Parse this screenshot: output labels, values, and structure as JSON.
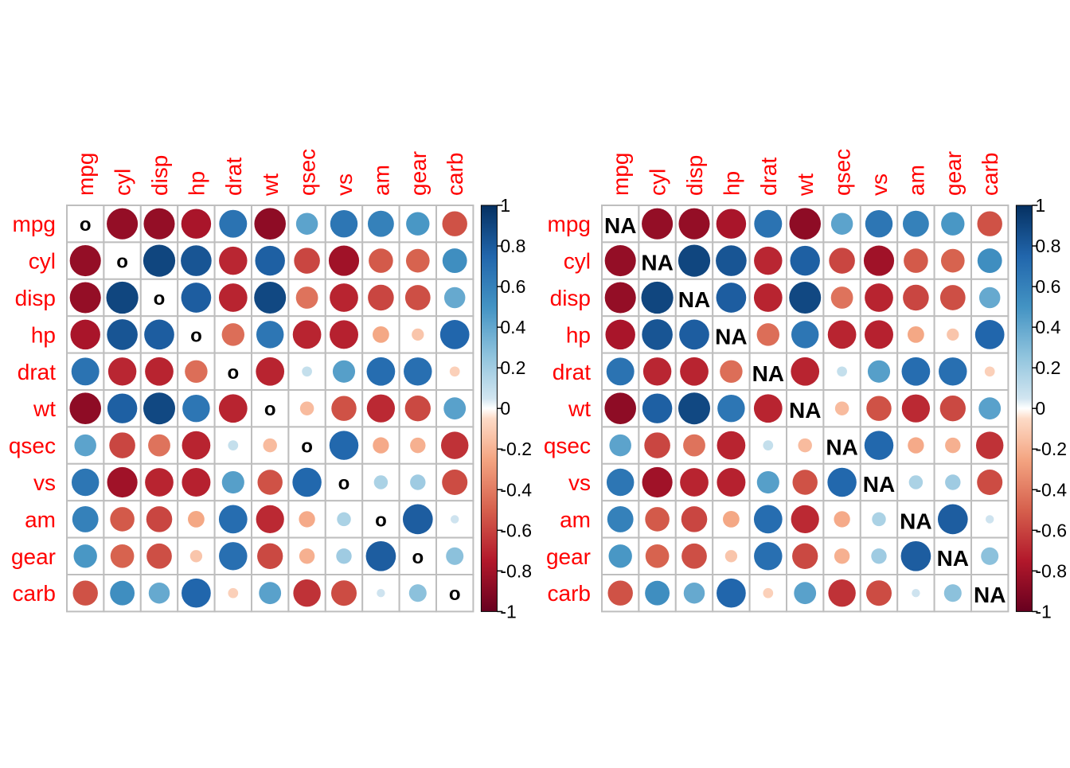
{
  "chart_data": [
    {
      "type": "heatmap",
      "variables": [
        "mpg",
        "cyl",
        "disp",
        "hp",
        "drat",
        "wt",
        "qsec",
        "vs",
        "am",
        "gear",
        "carb"
      ],
      "diagonal_label": "o",
      "matrix": [
        [
          null,
          -0.85,
          -0.85,
          -0.78,
          0.68,
          -0.87,
          0.42,
          0.66,
          0.6,
          0.48,
          -0.55
        ],
        [
          -0.85,
          null,
          0.9,
          0.83,
          -0.7,
          0.78,
          -0.59,
          -0.81,
          -0.52,
          -0.49,
          0.53
        ],
        [
          -0.85,
          0.9,
          null,
          0.79,
          -0.71,
          0.89,
          -0.43,
          -0.71,
          -0.59,
          -0.56,
          0.39
        ],
        [
          -0.78,
          0.83,
          0.79,
          null,
          -0.45,
          0.66,
          -0.71,
          -0.72,
          -0.24,
          -0.13,
          0.75
        ],
        [
          0.68,
          -0.7,
          -0.71,
          -0.45,
          null,
          -0.71,
          0.09,
          0.44,
          0.71,
          0.7,
          -0.09
        ],
        [
          -0.87,
          0.78,
          0.89,
          0.66,
          -0.71,
          null,
          -0.17,
          -0.55,
          -0.69,
          -0.58,
          0.43
        ],
        [
          0.42,
          -0.59,
          -0.43,
          -0.71,
          0.09,
          -0.17,
          null,
          0.74,
          -0.23,
          -0.21,
          -0.66
        ],
        [
          0.66,
          -0.81,
          -0.71,
          -0.72,
          0.44,
          -0.55,
          0.74,
          null,
          0.17,
          0.21,
          -0.57
        ],
        [
          0.6,
          -0.52,
          -0.59,
          -0.24,
          0.71,
          -0.69,
          -0.23,
          0.17,
          null,
          0.79,
          0.06
        ],
        [
          0.48,
          -0.49,
          -0.56,
          -0.13,
          0.7,
          -0.58,
          -0.21,
          0.21,
          0.79,
          null,
          0.27
        ],
        [
          -0.55,
          0.53,
          0.39,
          0.75,
          -0.09,
          0.43,
          -0.66,
          -0.57,
          0.06,
          0.27,
          null
        ]
      ],
      "colorbar": {
        "ticks": [
          "1",
          "0.8",
          "0.6",
          "0.4",
          "0.2",
          "0",
          "-0.2",
          "-0.4",
          "-0.6",
          "-0.8",
          "-1"
        ],
        "range": [
          -1,
          1
        ]
      },
      "colors": {
        "negative": "#67001F",
        "zero": "#FFFFFF",
        "positive": "#053061",
        "label": "#FF0000",
        "grid": "#BEBEBE"
      }
    },
    {
      "type": "heatmap",
      "variables": [
        "mpg",
        "cyl",
        "disp",
        "hp",
        "drat",
        "wt",
        "qsec",
        "vs",
        "am",
        "gear",
        "carb"
      ],
      "diagonal_label": "NA",
      "matrix": [
        [
          null,
          -0.85,
          -0.85,
          -0.78,
          0.68,
          -0.87,
          0.42,
          0.66,
          0.6,
          0.48,
          -0.55
        ],
        [
          -0.85,
          null,
          0.9,
          0.83,
          -0.7,
          0.78,
          -0.59,
          -0.81,
          -0.52,
          -0.49,
          0.53
        ],
        [
          -0.85,
          0.9,
          null,
          0.79,
          -0.71,
          0.89,
          -0.43,
          -0.71,
          -0.59,
          -0.56,
          0.39
        ],
        [
          -0.78,
          0.83,
          0.79,
          null,
          -0.45,
          0.66,
          -0.71,
          -0.72,
          -0.24,
          -0.13,
          0.75
        ],
        [
          0.68,
          -0.7,
          -0.71,
          -0.45,
          null,
          -0.71,
          0.09,
          0.44,
          0.71,
          0.7,
          -0.09
        ],
        [
          -0.87,
          0.78,
          0.89,
          0.66,
          -0.71,
          null,
          -0.17,
          -0.55,
          -0.69,
          -0.58,
          0.43
        ],
        [
          0.42,
          -0.59,
          -0.43,
          -0.71,
          0.09,
          -0.17,
          null,
          0.74,
          -0.23,
          -0.21,
          -0.66
        ],
        [
          0.66,
          -0.81,
          -0.71,
          -0.72,
          0.44,
          -0.55,
          0.74,
          null,
          0.17,
          0.21,
          -0.57
        ],
        [
          0.6,
          -0.52,
          -0.59,
          -0.24,
          0.71,
          -0.69,
          -0.23,
          0.17,
          null,
          0.79,
          0.06
        ],
        [
          0.48,
          -0.49,
          -0.56,
          -0.13,
          0.7,
          -0.58,
          -0.21,
          0.21,
          0.79,
          null,
          0.27
        ],
        [
          -0.55,
          0.53,
          0.39,
          0.75,
          -0.09,
          0.43,
          -0.66,
          -0.57,
          0.06,
          0.27,
          null
        ]
      ],
      "colorbar": {
        "ticks": [
          "1",
          "0.8",
          "0.6",
          "0.4",
          "0.2",
          "0",
          "-0.2",
          "-0.4",
          "-0.6",
          "-0.8",
          "-1"
        ],
        "range": [
          -1,
          1
        ]
      },
      "colors": {
        "negative": "#67001F",
        "zero": "#FFFFFF",
        "positive": "#053061",
        "label": "#FF0000",
        "grid": "#BEBEBE"
      }
    }
  ]
}
